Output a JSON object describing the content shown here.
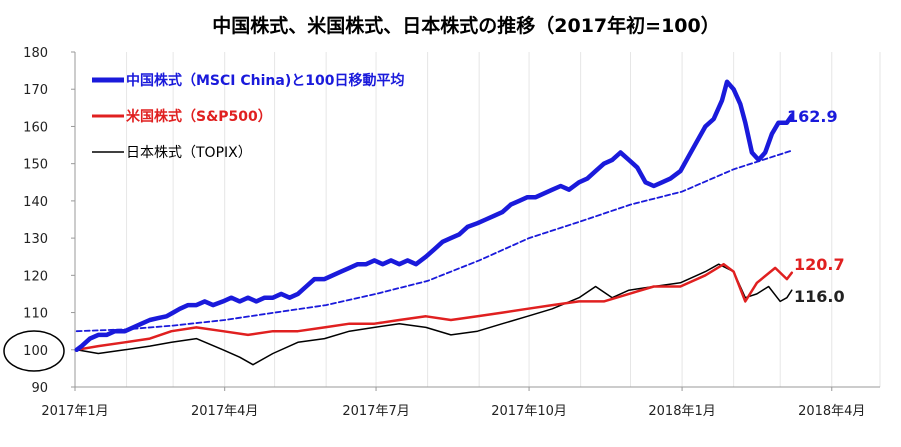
{
  "chart_data": {
    "type": "line",
    "title": "中国株式、米国株式、日本株式の推移（2017年初=100）",
    "ylim": [
      90,
      180
    ],
    "yticks": [
      90,
      100,
      110,
      120,
      130,
      140,
      150,
      160,
      170,
      180
    ],
    "xlim": [
      "2017-01-01",
      "2018-04-30"
    ],
    "xticks": [
      {
        "date": "2017-01-01",
        "label": "2017年1月"
      },
      {
        "date": "2017-04-01",
        "label": "2017年4月"
      },
      {
        "date": "2017-07-01",
        "label": "2017年7月"
      },
      {
        "date": "2017-10-01",
        "label": "2017年10月"
      },
      {
        "date": "2018-01-01",
        "label": "2018年1月"
      },
      {
        "date": "2018-04-01",
        "label": "2018年4月"
      }
    ],
    "grid": "vertical",
    "legend_position": "top-left",
    "series": [
      {
        "name": "中国株式（MSCI China)と100日移動平均",
        "color": "#1a1adb",
        "style": "thick",
        "end_label": "162.9",
        "points": [
          [
            "2017-01-02",
            100
          ],
          [
            "2017-01-05",
            101
          ],
          [
            "2017-01-10",
            103
          ],
          [
            "2017-01-15",
            104
          ],
          [
            "2017-01-20",
            104
          ],
          [
            "2017-01-25",
            105
          ],
          [
            "2017-01-31",
            105
          ],
          [
            "2017-02-05",
            106
          ],
          [
            "2017-02-10",
            107
          ],
          [
            "2017-02-15",
            108
          ],
          [
            "2017-02-20",
            108.5
          ],
          [
            "2017-02-25",
            109
          ],
          [
            "2017-03-01",
            110
          ],
          [
            "2017-03-05",
            111
          ],
          [
            "2017-03-10",
            112
          ],
          [
            "2017-03-15",
            112
          ],
          [
            "2017-03-20",
            113
          ],
          [
            "2017-03-25",
            112
          ],
          [
            "2017-03-31",
            113
          ],
          [
            "2017-04-05",
            114
          ],
          [
            "2017-04-10",
            113
          ],
          [
            "2017-04-15",
            114
          ],
          [
            "2017-04-20",
            113
          ],
          [
            "2017-04-25",
            114
          ],
          [
            "2017-04-30",
            114
          ],
          [
            "2017-05-05",
            115
          ],
          [
            "2017-05-10",
            114
          ],
          [
            "2017-05-15",
            115
          ],
          [
            "2017-05-20",
            117
          ],
          [
            "2017-05-25",
            119
          ],
          [
            "2017-05-31",
            119
          ],
          [
            "2017-06-05",
            120
          ],
          [
            "2017-06-10",
            121
          ],
          [
            "2017-06-15",
            122
          ],
          [
            "2017-06-20",
            123
          ],
          [
            "2017-06-25",
            123
          ],
          [
            "2017-06-30",
            124
          ],
          [
            "2017-07-05",
            123
          ],
          [
            "2017-07-10",
            124
          ],
          [
            "2017-07-15",
            123
          ],
          [
            "2017-07-20",
            124
          ],
          [
            "2017-07-25",
            123
          ],
          [
            "2017-07-31",
            125
          ],
          [
            "2017-08-05",
            127
          ],
          [
            "2017-08-10",
            129
          ],
          [
            "2017-08-15",
            130
          ],
          [
            "2017-08-20",
            131
          ],
          [
            "2017-08-25",
            133
          ],
          [
            "2017-08-31",
            134
          ],
          [
            "2017-09-05",
            135
          ],
          [
            "2017-09-10",
            136
          ],
          [
            "2017-09-15",
            137
          ],
          [
            "2017-09-20",
            139
          ],
          [
            "2017-09-25",
            140
          ],
          [
            "2017-09-30",
            141
          ],
          [
            "2017-10-05",
            141
          ],
          [
            "2017-10-10",
            142
          ],
          [
            "2017-10-15",
            143
          ],
          [
            "2017-10-20",
            144
          ],
          [
            "2017-10-25",
            143
          ],
          [
            "2017-10-31",
            145
          ],
          [
            "2017-11-05",
            146
          ],
          [
            "2017-11-10",
            148
          ],
          [
            "2017-11-15",
            150
          ],
          [
            "2017-11-20",
            151
          ],
          [
            "2017-11-25",
            153
          ],
          [
            "2017-11-30",
            151
          ],
          [
            "2017-12-05",
            149
          ],
          [
            "2017-12-10",
            145
          ],
          [
            "2017-12-15",
            144
          ],
          [
            "2017-12-20",
            145
          ],
          [
            "2017-12-25",
            146
          ],
          [
            "2017-12-31",
            148
          ],
          [
            "2018-01-05",
            152
          ],
          [
            "2018-01-10",
            156
          ],
          [
            "2018-01-15",
            160
          ],
          [
            "2018-01-20",
            162
          ],
          [
            "2018-01-25",
            167
          ],
          [
            "2018-01-28",
            172
          ],
          [
            "2018-02-01",
            170
          ],
          [
            "2018-02-05",
            166
          ],
          [
            "2018-02-08",
            161
          ],
          [
            "2018-02-12",
            153
          ],
          [
            "2018-02-16",
            151
          ],
          [
            "2018-02-20",
            153
          ],
          [
            "2018-02-24",
            158
          ],
          [
            "2018-02-28",
            161
          ],
          [
            "2018-03-05",
            161
          ],
          [
            "2018-03-08",
            162.9
          ]
        ]
      },
      {
        "name": "100日移動平均",
        "color": "#1a1adb",
        "style": "dashed",
        "points": [
          [
            "2017-01-02",
            105
          ],
          [
            "2017-02-01",
            105.5
          ],
          [
            "2017-03-01",
            106.5
          ],
          [
            "2017-04-01",
            108
          ],
          [
            "2017-05-01",
            110
          ],
          [
            "2017-06-01",
            112
          ],
          [
            "2017-07-01",
            115
          ],
          [
            "2017-08-01",
            118.5
          ],
          [
            "2017-09-01",
            124
          ],
          [
            "2017-10-01",
            130
          ],
          [
            "2017-11-01",
            134.5
          ],
          [
            "2017-12-01",
            139
          ],
          [
            "2018-01-01",
            142.5
          ],
          [
            "2018-02-01",
            148.5
          ],
          [
            "2018-03-08",
            153.5
          ]
        ]
      },
      {
        "name": "米国株式（S&P500）",
        "color": "#e02020",
        "style": "medium",
        "end_label": "120.7",
        "points": [
          [
            "2017-01-02",
            100
          ],
          [
            "2017-01-15",
            101
          ],
          [
            "2017-01-31",
            102
          ],
          [
            "2017-02-15",
            103
          ],
          [
            "2017-02-28",
            105
          ],
          [
            "2017-03-15",
            106
          ],
          [
            "2017-03-31",
            105
          ],
          [
            "2017-04-15",
            104
          ],
          [
            "2017-04-30",
            105
          ],
          [
            "2017-05-15",
            105
          ],
          [
            "2017-05-31",
            106
          ],
          [
            "2017-06-15",
            107
          ],
          [
            "2017-06-30",
            107
          ],
          [
            "2017-07-15",
            108
          ],
          [
            "2017-07-31",
            109
          ],
          [
            "2017-08-15",
            108
          ],
          [
            "2017-08-31",
            109
          ],
          [
            "2017-09-15",
            110
          ],
          [
            "2017-09-30",
            111
          ],
          [
            "2017-10-15",
            112
          ],
          [
            "2017-10-31",
            113
          ],
          [
            "2017-11-15",
            113
          ],
          [
            "2017-11-30",
            115
          ],
          [
            "2017-12-15",
            117
          ],
          [
            "2017-12-31",
            117
          ],
          [
            "2018-01-15",
            120
          ],
          [
            "2018-01-26",
            123
          ],
          [
            "2018-02-01",
            121
          ],
          [
            "2018-02-08",
            113
          ],
          [
            "2018-02-15",
            118
          ],
          [
            "2018-02-26",
            122
          ],
          [
            "2018-03-05",
            119
          ],
          [
            "2018-03-08",
            120.7
          ]
        ]
      },
      {
        "name": "日本株式（TOPIX）",
        "color": "#000000",
        "style": "thin",
        "end_label": "116.0",
        "points": [
          [
            "2017-01-02",
            100
          ],
          [
            "2017-01-15",
            99
          ],
          [
            "2017-01-31",
            100
          ],
          [
            "2017-02-15",
            101
          ],
          [
            "2017-02-28",
            102
          ],
          [
            "2017-03-15",
            103
          ],
          [
            "2017-03-31",
            100
          ],
          [
            "2017-04-10",
            98
          ],
          [
            "2017-04-18",
            96
          ],
          [
            "2017-04-30",
            99
          ],
          [
            "2017-05-15",
            102
          ],
          [
            "2017-05-31",
            103
          ],
          [
            "2017-06-15",
            105
          ],
          [
            "2017-06-30",
            106
          ],
          [
            "2017-07-15",
            107
          ],
          [
            "2017-07-31",
            106
          ],
          [
            "2017-08-15",
            104
          ],
          [
            "2017-08-31",
            105
          ],
          [
            "2017-09-15",
            107
          ],
          [
            "2017-09-30",
            109
          ],
          [
            "2017-10-15",
            111
          ],
          [
            "2017-10-31",
            114
          ],
          [
            "2017-11-10",
            117
          ],
          [
            "2017-11-20",
            114
          ],
          [
            "2017-11-30",
            116
          ],
          [
            "2017-12-15",
            117
          ],
          [
            "2017-12-31",
            118
          ],
          [
            "2018-01-15",
            121
          ],
          [
            "2018-01-23",
            123
          ],
          [
            "2018-02-01",
            121
          ],
          [
            "2018-02-08",
            114
          ],
          [
            "2018-02-15",
            115
          ],
          [
            "2018-02-22",
            117
          ],
          [
            "2018-03-01",
            113
          ],
          [
            "2018-03-05",
            114
          ],
          [
            "2018-03-08",
            116.0
          ]
        ]
      }
    ],
    "annotation": {
      "type": "circle",
      "target_value": 100
    }
  },
  "colors": {
    "blue": "#1a1adb",
    "red": "#e02020",
    "black": "#000000",
    "grid": "#e6e6e6",
    "axis": "#999999"
  }
}
